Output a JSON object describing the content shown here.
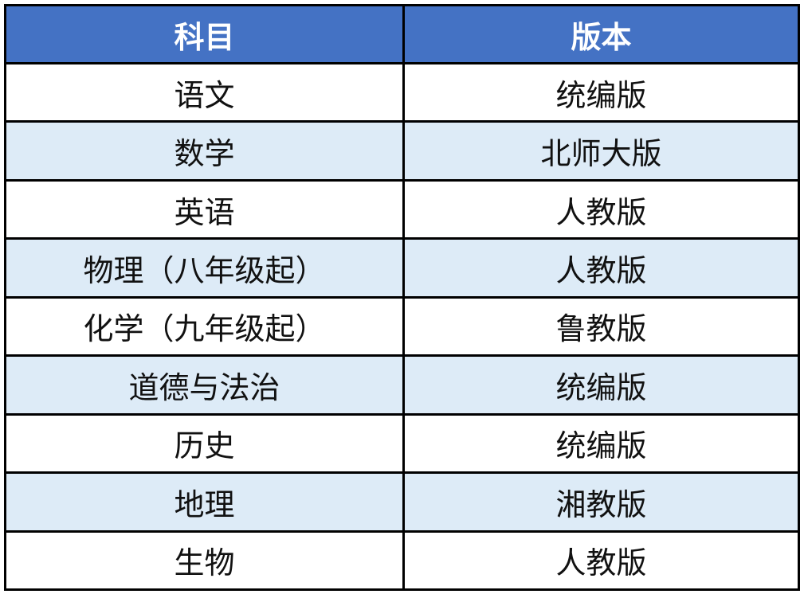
{
  "colors": {
    "header": "#4472C4",
    "stripe": "#DDEBF7"
  },
  "table": {
    "headers": [
      "科目",
      "版本"
    ],
    "rows": [
      [
        "语文",
        "统编版"
      ],
      [
        "数学",
        "北师大版"
      ],
      [
        "英语",
        "人教版"
      ],
      [
        "物理（八年级起）",
        "人教版"
      ],
      [
        "化学（九年级起）",
        "鲁教版"
      ],
      [
        "道德与法治",
        "统编版"
      ],
      [
        "历史",
        "统编版"
      ],
      [
        "地理",
        "湘教版"
      ],
      [
        "生物",
        "人教版"
      ]
    ]
  }
}
